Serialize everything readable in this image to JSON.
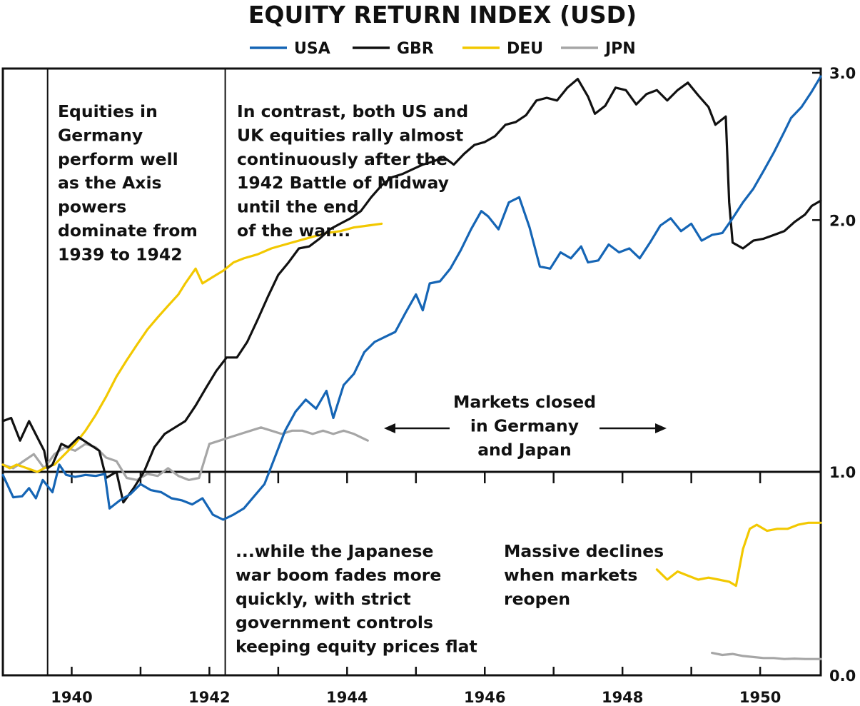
{
  "chart_data": {
    "type": "line",
    "title": "EQUITY RETURN INDEX (USD)",
    "xlabel": "",
    "ylabel": "",
    "x_ticks": [
      "1940",
      "1942",
      "1944",
      "1946",
      "1948",
      "1950"
    ],
    "y_ticks": [
      "0.0",
      "1.0",
      "2.0",
      "3.0"
    ],
    "xlim": [
      1939.0,
      1950.88
    ],
    "ylim": [
      0.0,
      3.0
    ],
    "y_scale": "log",
    "reference_line": 1.0,
    "vertical_markers": [
      1939.65,
      1942.23
    ],
    "legend_position": "top",
    "series": [
      {
        "name": "USA",
        "color": "#1565b5",
        "points": [
          [
            1939.0,
            0.985
          ],
          [
            1939.15,
            0.875
          ],
          [
            1939.28,
            0.88
          ],
          [
            1939.38,
            0.92
          ],
          [
            1939.48,
            0.87
          ],
          [
            1939.58,
            0.96
          ],
          [
            1939.72,
            0.9
          ],
          [
            1939.82,
            1.02
          ],
          [
            1939.92,
            0.985
          ],
          [
            1940.05,
            0.975
          ],
          [
            1940.2,
            0.985
          ],
          [
            1940.35,
            0.98
          ],
          [
            1940.48,
            0.99
          ],
          [
            1940.55,
            0.82
          ],
          [
            1940.7,
            0.86
          ],
          [
            1940.85,
            0.89
          ],
          [
            1941.0,
            0.94
          ],
          [
            1941.15,
            0.91
          ],
          [
            1941.3,
            0.9
          ],
          [
            1941.45,
            0.87
          ],
          [
            1941.6,
            0.86
          ],
          [
            1941.75,
            0.84
          ],
          [
            1941.9,
            0.87
          ],
          [
            1942.05,
            0.79
          ],
          [
            1942.2,
            0.765
          ],
          [
            1942.35,
            0.79
          ],
          [
            1942.5,
            0.82
          ],
          [
            1942.65,
            0.88
          ],
          [
            1942.8,
            0.94
          ],
          [
            1942.95,
            1.04
          ],
          [
            1943.1,
            1.12
          ],
          [
            1943.25,
            1.18
          ],
          [
            1943.4,
            1.22
          ],
          [
            1943.55,
            1.19
          ],
          [
            1943.7,
            1.25
          ],
          [
            1943.8,
            1.16
          ],
          [
            1943.95,
            1.27
          ],
          [
            1944.1,
            1.31
          ],
          [
            1944.25,
            1.39
          ],
          [
            1944.4,
            1.43
          ],
          [
            1944.55,
            1.45
          ],
          [
            1944.7,
            1.47
          ],
          [
            1944.85,
            1.55
          ],
          [
            1945.0,
            1.63
          ],
          [
            1945.1,
            1.56
          ],
          [
            1945.2,
            1.68
          ],
          [
            1945.35,
            1.69
          ],
          [
            1945.5,
            1.75
          ],
          [
            1945.65,
            1.84
          ],
          [
            1945.8,
            1.95
          ],
          [
            1945.95,
            2.05
          ],
          [
            1946.05,
            2.02
          ],
          [
            1946.2,
            1.95
          ],
          [
            1946.35,
            2.1
          ],
          [
            1946.5,
            2.13
          ],
          [
            1946.65,
            1.96
          ],
          [
            1946.8,
            1.76
          ],
          [
            1946.95,
            1.75
          ],
          [
            1947.1,
            1.83
          ],
          [
            1947.25,
            1.8
          ],
          [
            1947.4,
            1.86
          ],
          [
            1947.5,
            1.78
          ],
          [
            1947.65,
            1.79
          ],
          [
            1947.8,
            1.87
          ],
          [
            1947.95,
            1.83
          ],
          [
            1948.1,
            1.85
          ],
          [
            1948.25,
            1.8
          ],
          [
            1948.4,
            1.88
          ],
          [
            1948.55,
            1.97
          ],
          [
            1948.7,
            2.01
          ],
          [
            1948.85,
            1.94
          ],
          [
            1949.0,
            1.98
          ],
          [
            1949.15,
            1.89
          ],
          [
            1949.3,
            1.92
          ],
          [
            1949.45,
            1.93
          ],
          [
            1949.6,
            2.01
          ],
          [
            1949.75,
            2.1
          ],
          [
            1949.9,
            2.18
          ],
          [
            1950.05,
            2.29
          ],
          [
            1950.2,
            2.41
          ],
          [
            1950.35,
            2.55
          ],
          [
            1950.45,
            2.65
          ],
          [
            1950.6,
            2.73
          ],
          [
            1950.75,
            2.85
          ],
          [
            1950.88,
            2.97
          ]
        ]
      },
      {
        "name": "GBR",
        "color": "#111111",
        "points": [
          [
            1939.0,
            1.15
          ],
          [
            1939.12,
            1.16
          ],
          [
            1939.25,
            1.09
          ],
          [
            1939.38,
            1.15
          ],
          [
            1939.5,
            1.1
          ],
          [
            1939.6,
            1.06
          ],
          [
            1939.65,
            1.01
          ],
          [
            1939.72,
            1.02
          ],
          [
            1939.85,
            1.08
          ],
          [
            1939.95,
            1.07
          ],
          [
            1940.1,
            1.1
          ],
          [
            1940.25,
            1.08
          ],
          [
            1940.4,
            1.06
          ],
          [
            1940.5,
            0.97
          ],
          [
            1940.65,
            1.0
          ],
          [
            1940.75,
            0.85
          ],
          [
            1940.9,
            0.92
          ],
          [
            1941.05,
            1.0
          ],
          [
            1941.2,
            1.07
          ],
          [
            1941.35,
            1.11
          ],
          [
            1941.5,
            1.13
          ],
          [
            1941.65,
            1.15
          ],
          [
            1941.8,
            1.2
          ],
          [
            1941.95,
            1.26
          ],
          [
            1942.1,
            1.32
          ],
          [
            1942.25,
            1.37
          ],
          [
            1942.4,
            1.37
          ],
          [
            1942.55,
            1.43
          ],
          [
            1942.7,
            1.52
          ],
          [
            1942.85,
            1.62
          ],
          [
            1943.0,
            1.72
          ],
          [
            1943.15,
            1.78
          ],
          [
            1943.3,
            1.85
          ],
          [
            1943.45,
            1.86
          ],
          [
            1943.6,
            1.9
          ],
          [
            1943.75,
            1.95
          ],
          [
            1943.9,
            1.98
          ],
          [
            1944.05,
            2.01
          ],
          [
            1944.2,
            2.05
          ],
          [
            1944.35,
            2.13
          ],
          [
            1944.5,
            2.2
          ],
          [
            1944.65,
            2.25
          ],
          [
            1944.8,
            2.27
          ],
          [
            1944.95,
            2.3
          ],
          [
            1945.1,
            2.33
          ],
          [
            1945.25,
            2.35
          ],
          [
            1945.4,
            2.38
          ],
          [
            1945.55,
            2.33
          ],
          [
            1945.7,
            2.4
          ],
          [
            1945.85,
            2.46
          ],
          [
            1946.0,
            2.48
          ],
          [
            1946.15,
            2.52
          ],
          [
            1946.3,
            2.6
          ],
          [
            1946.45,
            2.62
          ],
          [
            1946.6,
            2.67
          ],
          [
            1946.75,
            2.78
          ],
          [
            1946.9,
            2.8
          ],
          [
            1947.05,
            2.78
          ],
          [
            1947.2,
            2.88
          ],
          [
            1947.35,
            2.95
          ],
          [
            1947.5,
            2.81
          ],
          [
            1947.6,
            2.68
          ],
          [
            1947.75,
            2.74
          ],
          [
            1947.9,
            2.88
          ],
          [
            1948.05,
            2.86
          ],
          [
            1948.2,
            2.75
          ],
          [
            1948.35,
            2.83
          ],
          [
            1948.5,
            2.86
          ],
          [
            1948.65,
            2.78
          ],
          [
            1948.8,
            2.86
          ],
          [
            1948.95,
            2.92
          ],
          [
            1949.1,
            2.82
          ],
          [
            1949.25,
            2.73
          ],
          [
            1949.35,
            2.6
          ],
          [
            1949.5,
            2.66
          ],
          [
            1949.55,
            2.1
          ],
          [
            1949.6,
            1.88
          ],
          [
            1949.75,
            1.85
          ],
          [
            1949.9,
            1.89
          ],
          [
            1950.05,
            1.9
          ],
          [
            1950.2,
            1.92
          ],
          [
            1950.35,
            1.94
          ],
          [
            1950.5,
            1.99
          ],
          [
            1950.65,
            2.03
          ],
          [
            1950.75,
            2.08
          ],
          [
            1950.88,
            2.11
          ]
        ]
      },
      {
        "name": "DEU",
        "color": "#f2c800",
        "points": [
          [
            1939.0,
            1.02
          ],
          [
            1939.1,
            1.01
          ],
          [
            1939.2,
            1.02
          ],
          [
            1939.35,
            1.01
          ],
          [
            1939.5,
            1.0
          ],
          [
            1939.6,
            1.01
          ],
          [
            1939.75,
            1.02
          ],
          [
            1939.9,
            1.05
          ],
          [
            1940.05,
            1.08
          ],
          [
            1940.2,
            1.12
          ],
          [
            1940.35,
            1.17
          ],
          [
            1940.5,
            1.23
          ],
          [
            1940.65,
            1.3
          ],
          [
            1940.8,
            1.36
          ],
          [
            1940.95,
            1.42
          ],
          [
            1941.1,
            1.48
          ],
          [
            1941.25,
            1.53
          ],
          [
            1941.4,
            1.58
          ],
          [
            1941.55,
            1.63
          ],
          [
            1941.65,
            1.68
          ],
          [
            1941.8,
            1.75
          ],
          [
            1941.9,
            1.68
          ],
          [
            1942.05,
            1.71
          ],
          [
            1942.2,
            1.74
          ],
          [
            1942.35,
            1.78
          ],
          [
            1942.5,
            1.8
          ],
          [
            1942.7,
            1.82
          ],
          [
            1942.9,
            1.85
          ],
          [
            1943.1,
            1.87
          ],
          [
            1943.3,
            1.89
          ],
          [
            1943.5,
            1.91
          ],
          [
            1943.7,
            1.93
          ],
          [
            1943.9,
            1.94
          ],
          [
            1944.1,
            1.96
          ],
          [
            1944.3,
            1.97
          ],
          [
            1944.5,
            1.98
          ]
        ]
      },
      {
        "name": "DEU (after reopening)",
        "color": "#f2c800",
        "points": [
          [
            1948.5,
            0.52
          ],
          [
            1948.65,
            0.47
          ],
          [
            1948.8,
            0.51
          ],
          [
            1948.95,
            0.49
          ],
          [
            1949.1,
            0.47
          ],
          [
            1949.25,
            0.48
          ],
          [
            1949.4,
            0.47
          ],
          [
            1949.55,
            0.46
          ],
          [
            1949.65,
            0.44
          ],
          [
            1949.75,
            0.62
          ],
          [
            1949.85,
            0.72
          ],
          [
            1949.95,
            0.74
          ],
          [
            1950.1,
            0.71
          ],
          [
            1950.25,
            0.72
          ],
          [
            1950.4,
            0.72
          ],
          [
            1950.55,
            0.74
          ],
          [
            1950.7,
            0.75
          ],
          [
            1950.88,
            0.75
          ]
        ]
      },
      {
        "name": "JPN",
        "color": "#a6a6a6",
        "points": [
          [
            1939.0,
            1.02
          ],
          [
            1939.15,
            1.01
          ],
          [
            1939.3,
            1.03
          ],
          [
            1939.45,
            1.05
          ],
          [
            1939.6,
            1.01
          ],
          [
            1939.75,
            1.05
          ],
          [
            1939.9,
            1.07
          ],
          [
            1940.05,
            1.06
          ],
          [
            1940.2,
            1.08
          ],
          [
            1940.35,
            1.07
          ],
          [
            1940.5,
            1.04
          ],
          [
            1940.65,
            1.03
          ],
          [
            1940.8,
            0.97
          ],
          [
            1940.95,
            0.96
          ],
          [
            1941.1,
            0.99
          ],
          [
            1941.25,
            0.98
          ],
          [
            1941.4,
            1.01
          ],
          [
            1941.55,
            0.98
          ],
          [
            1941.7,
            0.96
          ],
          [
            1941.85,
            0.97
          ],
          [
            1942.0,
            1.08
          ],
          [
            1942.15,
            1.09
          ],
          [
            1942.3,
            1.1
          ],
          [
            1942.45,
            1.11
          ],
          [
            1942.6,
            1.12
          ],
          [
            1942.75,
            1.13
          ],
          [
            1942.9,
            1.12
          ],
          [
            1943.05,
            1.11
          ],
          [
            1943.2,
            1.12
          ],
          [
            1943.35,
            1.12
          ],
          [
            1943.5,
            1.11
          ],
          [
            1943.65,
            1.12
          ],
          [
            1943.8,
            1.11
          ],
          [
            1943.95,
            1.12
          ],
          [
            1944.1,
            1.11
          ],
          [
            1944.3,
            1.09
          ]
        ]
      },
      {
        "name": "JPN (after reopening)",
        "color": "#a6a6a6",
        "points": [
          [
            1949.3,
            0.11
          ],
          [
            1949.45,
            0.1
          ],
          [
            1949.6,
            0.105
          ],
          [
            1949.75,
            0.095
          ],
          [
            1949.9,
            0.09
          ],
          [
            1950.05,
            0.085
          ],
          [
            1950.2,
            0.085
          ],
          [
            1950.35,
            0.08
          ],
          [
            1950.5,
            0.082
          ],
          [
            1950.65,
            0.08
          ],
          [
            1950.88,
            0.08
          ]
        ]
      }
    ],
    "legend": [
      {
        "label": "USA",
        "color": "#1565b5"
      },
      {
        "label": "GBR",
        "color": "#111111"
      },
      {
        "label": "DEU",
        "color": "#f2c800"
      },
      {
        "label": "JPN",
        "color": "#a6a6a6"
      }
    ],
    "annotations": [
      {
        "id": "axis-powers-note",
        "lines": [
          "Equities in",
          "Germany",
          "perform well",
          "as the Axis",
          "powers",
          "dominate from",
          "1939 to 1942"
        ]
      },
      {
        "id": "rally-note",
        "lines": [
          "In contrast, both US and",
          "UK equities rally almost",
          "continuously after the",
          "1942 Battle of Midway",
          "until the end",
          "of the war..."
        ]
      },
      {
        "id": "markets-closed-note",
        "lines": [
          "Markets closed",
          "in Germany",
          "and Japan"
        ]
      },
      {
        "id": "japan-boom-note",
        "lines": [
          "...while the Japanese",
          "war boom fades more",
          "quickly, with strict",
          "government controls",
          "keeping equity prices flat"
        ]
      },
      {
        "id": "massive-declines-note",
        "lines": [
          "Massive declines",
          "when markets",
          "reopen"
        ]
      }
    ]
  }
}
